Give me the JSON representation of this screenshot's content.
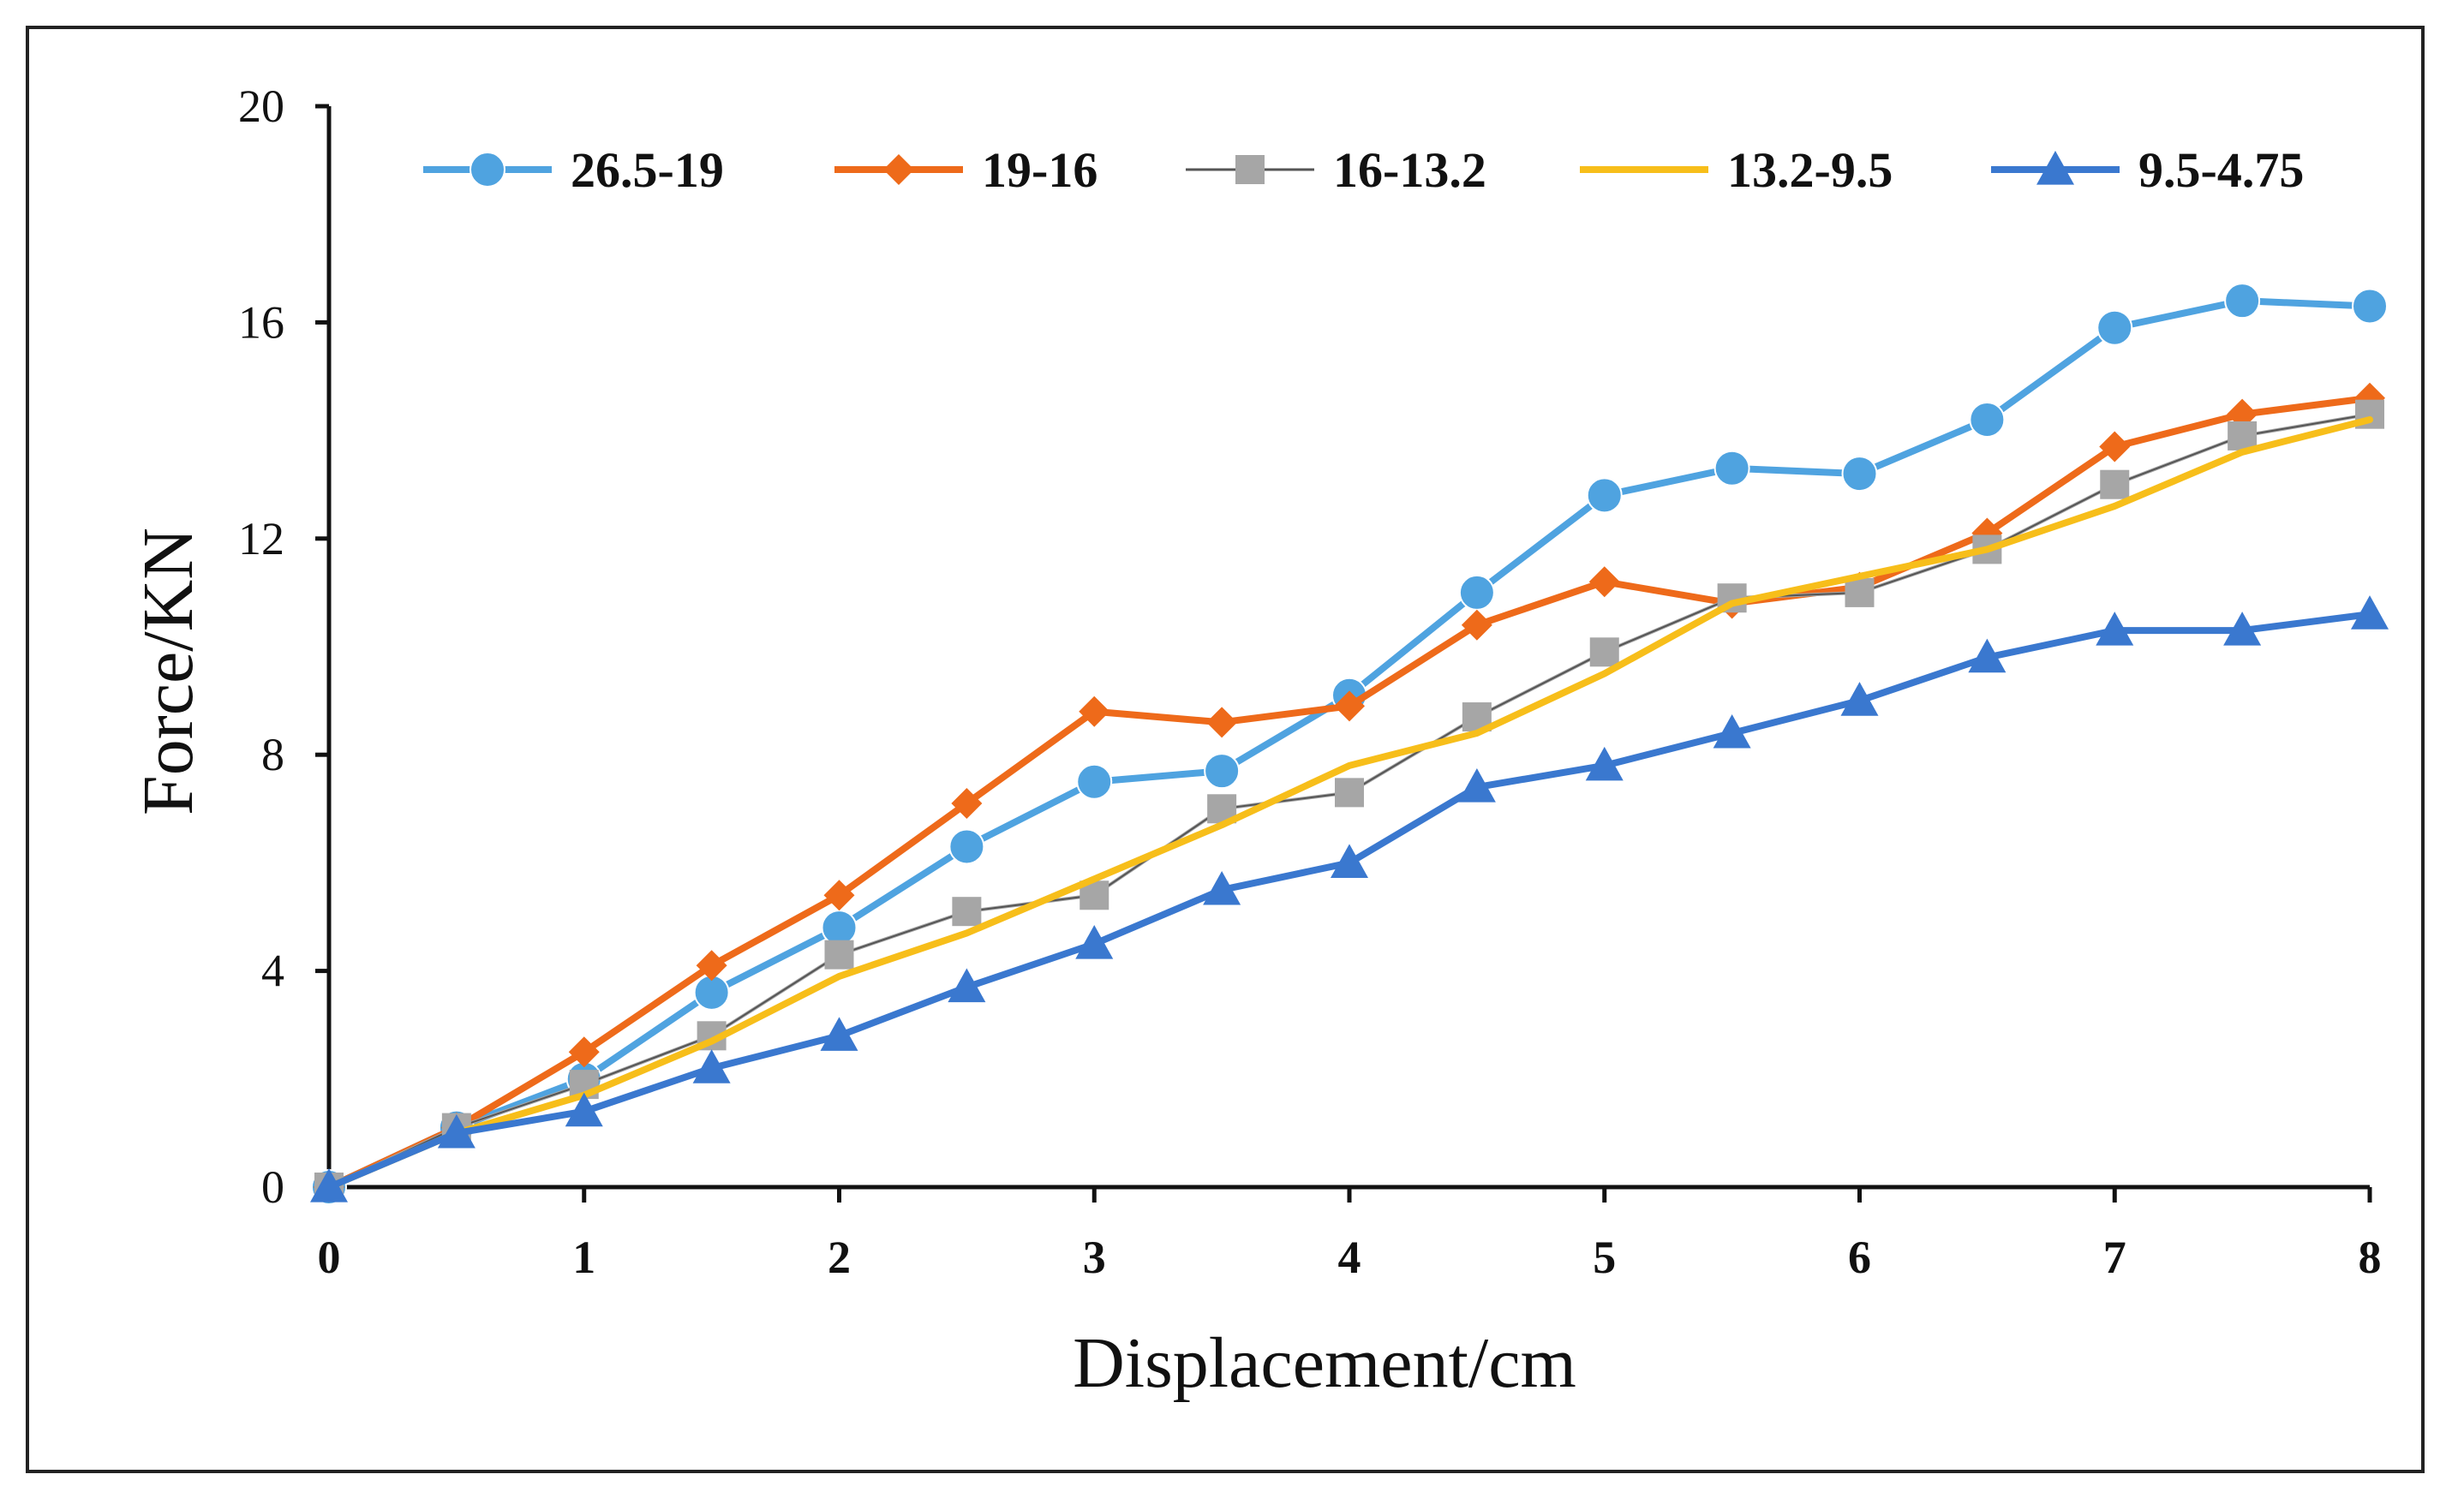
{
  "chart_data": {
    "type": "line",
    "title": "",
    "xlabel": "Displacement/cm",
    "ylabel": "Force/KN",
    "xlim": [
      0,
      8
    ],
    "ylim": [
      0,
      20
    ],
    "xticks": [
      0,
      1,
      2,
      3,
      4,
      5,
      6,
      7,
      8
    ],
    "yticks": [
      0,
      4,
      8,
      12,
      16,
      20
    ],
    "grid": false,
    "legend_position": "top",
    "x": [
      0,
      0.5,
      1,
      1.5,
      2,
      2.5,
      3,
      3.5,
      4,
      4.5,
      5,
      5.5,
      6,
      6.5,
      7,
      7.5,
      8
    ],
    "series": [
      {
        "name": "26.5-19",
        "color": "#4FA3E0",
        "marker": "circle",
        "values": [
          0,
          1.1,
          2.0,
          3.6,
          4.8,
          6.3,
          7.5,
          7.7,
          9.1,
          11.0,
          12.8,
          13.3,
          13.2,
          14.2,
          15.9,
          16.4,
          16.3
        ]
      },
      {
        "name": "19-16",
        "color": "#EE6A1A",
        "marker": "diamond",
        "values": [
          0,
          1.1,
          2.5,
          4.1,
          5.4,
          7.1,
          8.8,
          8.6,
          8.9,
          10.4,
          11.2,
          10.8,
          11.1,
          12.1,
          13.7,
          14.3,
          14.6
        ]
      },
      {
        "name": "16-13.2",
        "color": "#A6A6A6",
        "marker": "square",
        "values": [
          0,
          1.1,
          1.9,
          2.8,
          4.3,
          5.1,
          5.4,
          7.0,
          7.3,
          8.7,
          9.9,
          10.9,
          11.0,
          11.8,
          13.0,
          13.9,
          14.3
        ]
      },
      {
        "name": "13.2-9.5",
        "color": "#F7BE1A",
        "marker": "none",
        "values": [
          0,
          1.0,
          1.7,
          2.7,
          3.9,
          4.7,
          5.7,
          6.7,
          7.8,
          8.4,
          9.5,
          10.8,
          11.3,
          11.8,
          12.6,
          13.6,
          14.2
        ]
      },
      {
        "name": "9.5-4.75",
        "color": "#3A78CF",
        "marker": "triangle",
        "values": [
          0,
          1.0,
          1.4,
          2.2,
          2.8,
          3.7,
          4.5,
          5.5,
          6.0,
          7.4,
          7.8,
          8.4,
          9.0,
          9.8,
          10.3,
          10.3,
          10.6
        ]
      }
    ]
  }
}
